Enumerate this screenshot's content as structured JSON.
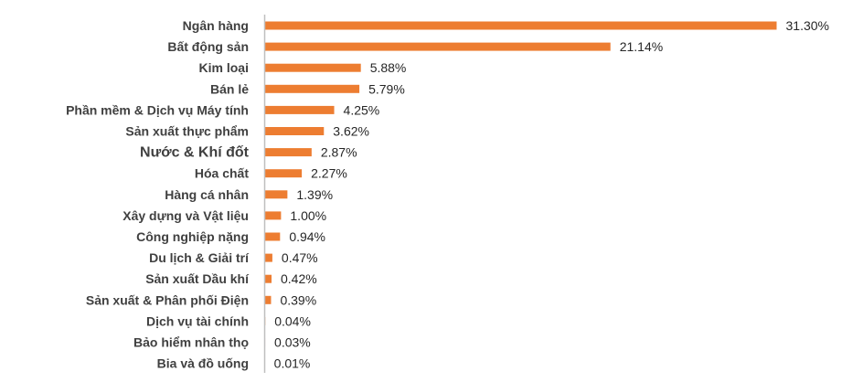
{
  "chart_data": {
    "type": "bar",
    "orientation": "horizontal",
    "title": "",
    "xlabel": "",
    "ylabel": "",
    "categories": [
      "Ngân hàng",
      "Bất động sản",
      "Kim loại",
      "Bán lẻ",
      "Phần mềm & Dịch vụ Máy tính",
      "Sản xuất thực phẩm",
      "Nước & Khí đốt",
      "Hóa chất",
      "Hàng cá nhân",
      "Xây dựng và Vật liệu",
      "Công nghiệp nặng",
      "Du lịch & Giải trí",
      "Sản xuất Dầu khí",
      "Sản xuất & Phân phối Điện",
      "Dịch vụ tài chính",
      "Bảo hiểm nhân thọ",
      "Bia và đồ uống"
    ],
    "values": [
      31.3,
      21.14,
      5.88,
      5.79,
      4.25,
      3.62,
      2.87,
      2.27,
      1.39,
      1.0,
      0.94,
      0.47,
      0.42,
      0.39,
      0.04,
      0.03,
      0.01
    ],
    "value_labels": [
      "31.30%",
      "21.14%",
      "5.88%",
      "5.79%",
      "4.25%",
      "3.62%",
      "2.87%",
      "2.27%",
      "1.39%",
      "1.00%",
      "0.94%",
      "0.47%",
      "0.42%",
      "0.39%",
      "0.04%",
      "0.03%",
      "0.01%"
    ],
    "xlim": [
      0,
      31.3
    ],
    "grid": false,
    "legend": "none",
    "bar_color": "#ED7D31",
    "axis_color": "#BFBFBF"
  }
}
